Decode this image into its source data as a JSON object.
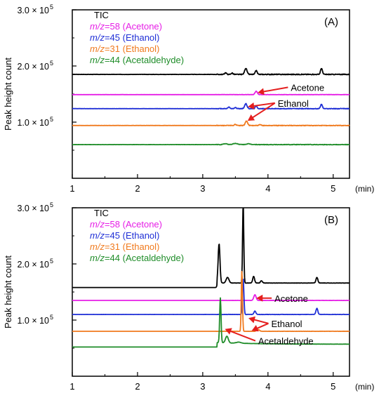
{
  "chart_data": [
    {
      "type": "line",
      "panel_label": "(A)",
      "ylabel": "Peak height count",
      "x_unit": "(min)",
      "xlim": [
        1,
        5.25
      ],
      "ylim": [
        0,
        300000
      ],
      "x_ticks": [
        "1",
        "2",
        "3",
        "4",
        "5"
      ],
      "y_ticks": [
        {
          "value": 100000,
          "label_base": "1.0 × 10",
          "exp": "5"
        },
        {
          "value": 200000,
          "label_base": "2.0 × 10",
          "exp": "5"
        },
        {
          "value": 300000,
          "label_base": "3.0 × 10",
          "exp": "5"
        }
      ],
      "legend": [
        {
          "mz": "",
          "rest": "TIC",
          "color": "#000000"
        },
        {
          "mz": "m/z",
          "rest": "=58 (Acetone)",
          "color": "#e61ee6"
        },
        {
          "mz": "m/z",
          "rest": "=45 (Ethanol)",
          "color": "#1f2fd6"
        },
        {
          "mz": "m/z",
          "rest": "=31 (Ethanol)",
          "color": "#f07a1e"
        },
        {
          "mz": "m/z",
          "rest": "=44 (Acetaldehyde)",
          "color": "#1e8c28"
        }
      ],
      "annotations": [
        {
          "text": "Acetone",
          "anchor_x": 4.35,
          "anchor_y": 162000,
          "arrows": [
            {
              "x": 3.82,
              "y": 152000
            }
          ]
        },
        {
          "text": "Ethanol",
          "anchor_x": 4.15,
          "anchor_y": 134000,
          "arrows": [
            {
              "x": 3.67,
              "y": 127000
            },
            {
              "x": 3.67,
              "y": 101000
            }
          ]
        }
      ],
      "series": [
        {
          "color": "#000000",
          "baseline": 185000,
          "noise": 900,
          "peaks": [
            [
              3.35,
              3000,
              0.02
            ],
            [
              3.45,
              2500,
              0.02
            ],
            [
              3.66,
              11000,
              0.025
            ],
            [
              3.82,
              7000,
              0.02
            ],
            [
              4.82,
              11000,
              0.02
            ]
          ]
        },
        {
          "color": "#e61ee6",
          "baseline": 149000,
          "noise": 350,
          "peaks": [
            [
              3.82,
              6000,
              0.025
            ]
          ]
        },
        {
          "color": "#1f2fd6",
          "baseline": 124000,
          "noise": 700,
          "peaks": [
            [
              3.4,
              3000,
              0.02
            ],
            [
              3.5,
              2000,
              0.02
            ],
            [
              3.66,
              9000,
              0.025
            ],
            [
              3.82,
              5000,
              0.02
            ],
            [
              4.82,
              8000,
              0.02
            ]
          ]
        },
        {
          "color": "#f07a1e",
          "baseline": 94000,
          "noise": 700,
          "peaks": [
            [
              3.5,
              2000,
              0.02
            ],
            [
              3.67,
              8000,
              0.025
            ],
            [
              3.88,
              1500,
              0.02
            ]
          ]
        },
        {
          "color": "#1e8c28",
          "baseline": 60000,
          "noise": 600,
          "peaks": [
            [
              3.35,
              1500,
              0.04
            ],
            [
              3.5,
              2000,
              0.05
            ],
            [
              3.7,
              1200,
              0.05
            ]
          ]
        }
      ]
    },
    {
      "type": "line",
      "panel_label": "(B)",
      "ylabel": "Peak height count",
      "x_unit": "(min)",
      "xlim": [
        1,
        5.25
      ],
      "ylim": [
        0,
        300000
      ],
      "x_ticks": [
        "1",
        "2",
        "3",
        "4",
        "5"
      ],
      "y_ticks": [
        {
          "value": 100000,
          "label_base": "1.0 × 10",
          "exp": "5"
        },
        {
          "value": 200000,
          "label_base": "2.0 × 10",
          "exp": "5"
        },
        {
          "value": 300000,
          "label_base": "3.0 × 10",
          "exp": "5"
        }
      ],
      "legend": [
        {
          "mz": "",
          "rest": "TIC",
          "color": "#000000"
        },
        {
          "mz": "m/z",
          "rest": "=58 (Acetone)",
          "color": "#e61ee6"
        },
        {
          "mz": "m/z",
          "rest": "=45 (Ethanol)",
          "color": "#1f2fd6"
        },
        {
          "mz": "m/z",
          "rest": "=31 (Ethanol)",
          "color": "#f07a1e"
        },
        {
          "mz": "m/z",
          "rest": "=44 (Acetaldehyde)",
          "color": "#1e8c28"
        }
      ],
      "annotations": [
        {
          "text": "Acetone",
          "anchor_x": 4.1,
          "anchor_y": 139000,
          "arrows": [
            {
              "x": 3.8,
              "y": 139000
            }
          ]
        },
        {
          "text": "Ethanol",
          "anchor_x": 4.05,
          "anchor_y": 94000,
          "arrows": [
            {
              "x": 3.68,
              "y": 104000
            },
            {
              "x": 3.73,
              "y": 80000
            }
          ]
        },
        {
          "text": "Acetaldehyde",
          "anchor_x": 3.85,
          "anchor_y": 63000,
          "arrows": [
            {
              "x": 3.32,
              "y": 85000
            }
          ]
        }
      ],
      "series": [
        {
          "color": "#000000",
          "baseline": 158000,
          "noise": 500,
          "start_x": 3.22,
          "pre_level": 158000,
          "step_to": 166000,
          "peaks": [
            [
              3.25,
              70000,
              0.02
            ],
            [
              3.38,
              10000,
              0.03
            ],
            [
              3.62,
              140000,
              0.013
            ],
            [
              3.78,
              12000,
              0.02
            ],
            [
              3.9,
              4000,
              0.02
            ],
            [
              4.75,
              10000,
              0.02
            ]
          ]
        },
        {
          "color": "#e61ee6",
          "baseline": 135000,
          "noise": 200,
          "peaks": [
            [
              3.8,
              10000,
              0.025
            ]
          ]
        },
        {
          "color": "#1f2fd6",
          "baseline": 110000,
          "noise": 300,
          "peaks": [
            [
              3.62,
              65000,
              0.015
            ],
            [
              3.8,
              6000,
              0.02
            ],
            [
              4.75,
              11000,
              0.02
            ]
          ]
        },
        {
          "color": "#f07a1e",
          "baseline": 80000,
          "noise": 200,
          "peaks": [
            [
              3.6,
              108000,
              0.013
            ],
            [
              3.85,
              3000,
              0.03
            ]
          ]
        },
        {
          "color": "#1e8c28",
          "baseline": 52000,
          "noise": 250,
          "start_x": 3.22,
          "pre_level": 52000,
          "step_to": 60000,
          "decay_to": 57000,
          "peaks": [
            [
              3.27,
              80000,
              0.015
            ],
            [
              3.37,
              12000,
              0.03
            ],
            [
              3.55,
              2000,
              0.05
            ]
          ]
        }
      ]
    }
  ]
}
